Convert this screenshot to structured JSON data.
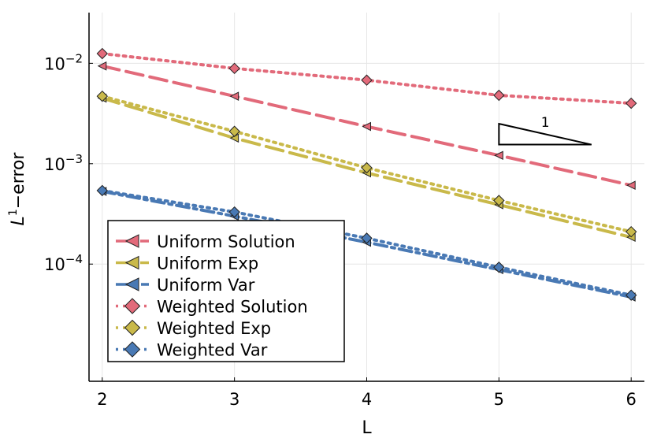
{
  "chart_data": {
    "type": "line",
    "xlabel": "L",
    "ylabel": {
      "base": "L",
      "sup": "1",
      "rest": "−error"
    },
    "yscale": "log",
    "xlim": [
      1.9,
      6.1
    ],
    "ylim": [
      6.8e-06,
      0.032
    ],
    "x_ticks": [
      2,
      3,
      4,
      5,
      6
    ],
    "y_ticks": [
      {
        "value": 0.01,
        "base": "10",
        "exp": "−2"
      },
      {
        "value": 0.001,
        "base": "10",
        "exp": "−3"
      },
      {
        "value": 0.0001,
        "base": "10",
        "exp": "−4"
      }
    ],
    "grid": true,
    "legend_position": "bottom-left",
    "x": [
      2,
      3,
      4,
      5,
      6
    ],
    "series": [
      {
        "name": "Uniform Solution",
        "color": "#e26a7a",
        "linestyle": "dash",
        "marker": "triangle-left",
        "values": [
          0.0094,
          0.0047,
          0.00235,
          0.00121,
          0.00061
        ]
      },
      {
        "name": "Uniform Exp",
        "color": "#c9b94a",
        "linestyle": "dash",
        "marker": "triangle-left",
        "values": [
          0.0045,
          0.0018,
          0.00081,
          0.00039,
          0.000185
        ]
      },
      {
        "name": "Uniform Var",
        "color": "#4979b4",
        "linestyle": "dashdot",
        "marker": "triangle-left",
        "values": [
          0.00053,
          0.0003,
          0.000165,
          8.8e-05,
          4.7e-05
        ]
      },
      {
        "name": "Weighted Solution",
        "color": "#e26a7a",
        "linestyle": "dot",
        "marker": "diamond",
        "values": [
          0.0125,
          0.0089,
          0.0068,
          0.0048,
          0.004
        ]
      },
      {
        "name": "Weighted Exp",
        "color": "#c9b94a",
        "linestyle": "dot",
        "marker": "diamond",
        "values": [
          0.0047,
          0.0021,
          0.00091,
          0.00043,
          0.00021
        ]
      },
      {
        "name": "Weighted Var",
        "color": "#4979b4",
        "linestyle": "dot",
        "marker": "diamond",
        "values": [
          0.00054,
          0.00033,
          0.000181,
          9.3e-05,
          4.9e-05
        ]
      }
    ],
    "slope_triangle": {
      "label": "1",
      "x": [
        5,
        5.7
      ],
      "y_top": 0.0025,
      "y_bottom": 0.00155
    }
  }
}
